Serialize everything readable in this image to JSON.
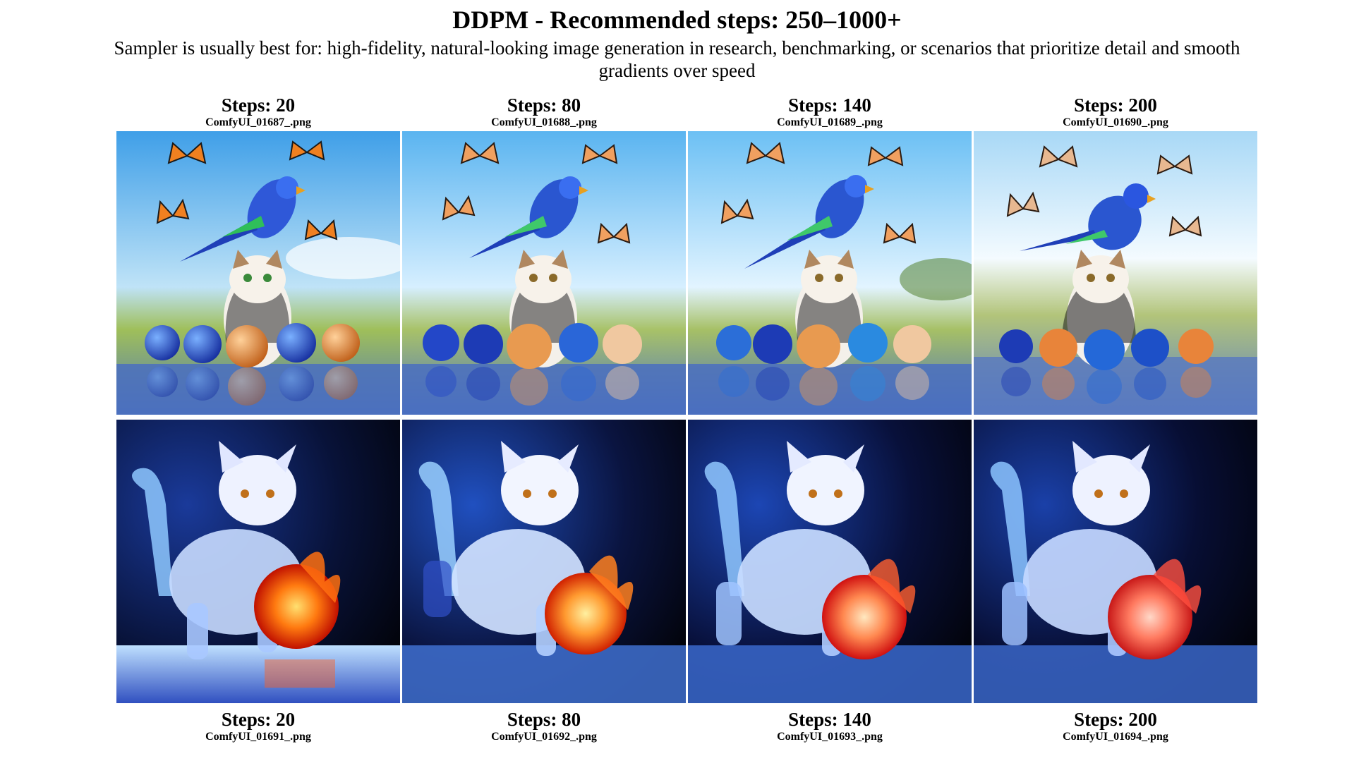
{
  "header": {
    "title": "DDPM - Recommended steps: 250–1000+",
    "subtitle": "Sampler is usually best for: high-fidelity, natural-looking image generation in research, benchmarking, or scenarios that prioritize detail and smooth gradients over speed"
  },
  "top_row": [
    {
      "steps": "Steps: 20",
      "file": "ComfyUI_01687_.png"
    },
    {
      "steps": "Steps: 80",
      "file": "ComfyUI_01688_.png"
    },
    {
      "steps": "Steps: 140",
      "file": "ComfyUI_01689_.png"
    },
    {
      "steps": "Steps: 200",
      "file": "ComfyUI_01690_.png"
    }
  ],
  "bottom_row": [
    {
      "steps": "Steps: 20",
      "file": "ComfyUI_01691_.png"
    },
    {
      "steps": "Steps: 80",
      "file": "ComfyUI_01692_.png"
    },
    {
      "steps": "Steps: 140",
      "file": "ComfyUI_01693_.png"
    },
    {
      "steps": "Steps: 200",
      "file": "ComfyUI_01694_.png"
    }
  ]
}
